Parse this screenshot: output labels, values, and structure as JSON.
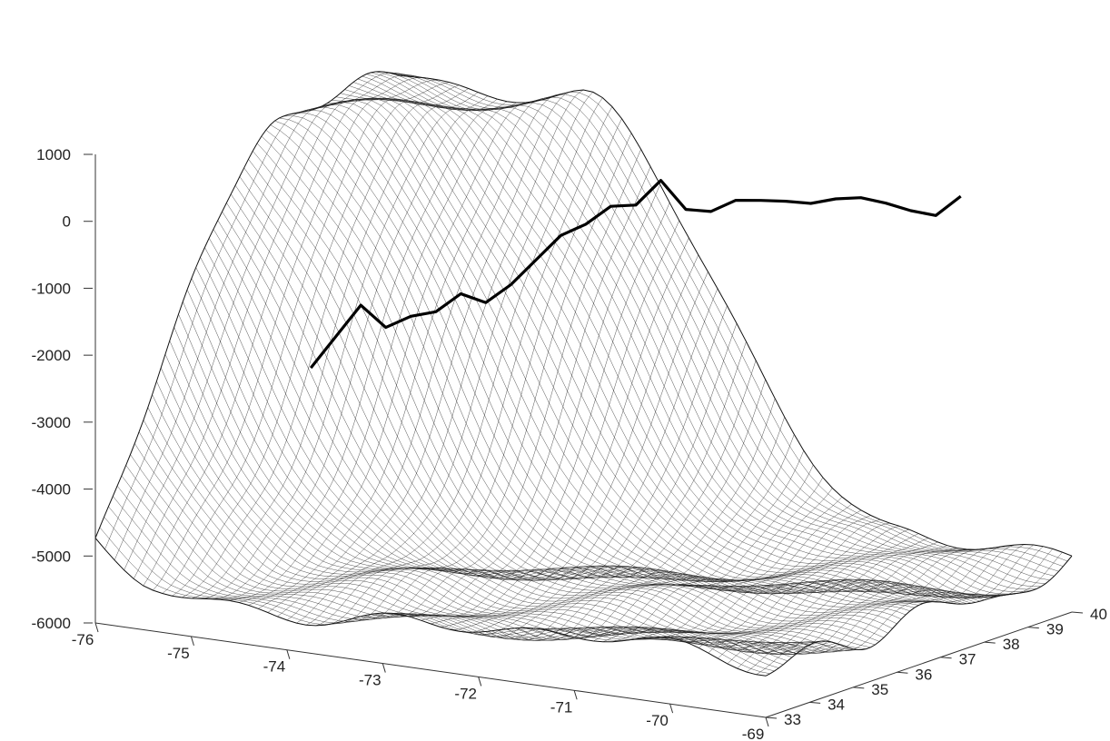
{
  "chart_data": {
    "type": "surface",
    "title": "",
    "xlabel": "",
    "ylabel": "",
    "zlabel": "",
    "xlim": [
      -76,
      -69
    ],
    "ylim": [
      33,
      40
    ],
    "zlim": [
      -6000,
      1000
    ],
    "x_ticks": [
      "-76",
      "-75",
      "-74",
      "-73",
      "-72",
      "-71",
      "-70",
      "-69"
    ],
    "y_ticks": [
      "33",
      "34",
      "35",
      "36",
      "37",
      "38",
      "39",
      "40"
    ],
    "z_ticks": [
      "1000",
      "0",
      "-1000",
      "-2000",
      "-3000",
      "-4000",
      "-5000",
      "-6000"
    ],
    "grid": false,
    "surface_style": "wireframe mesh",
    "profile_line": {
      "style": "bold",
      "color": "#000000",
      "z_values": [
        -3200,
        -2700,
        -2200,
        -2500,
        -2300,
        -2200,
        -1900,
        -2000,
        -1700,
        -1300,
        -900,
        -700,
        -400,
        -350,
        50,
        -350,
        -350,
        -150,
        -120,
        -100,
        -100,
        0,
        50,
        0,
        -80,
        -120,
        200
      ]
    }
  }
}
